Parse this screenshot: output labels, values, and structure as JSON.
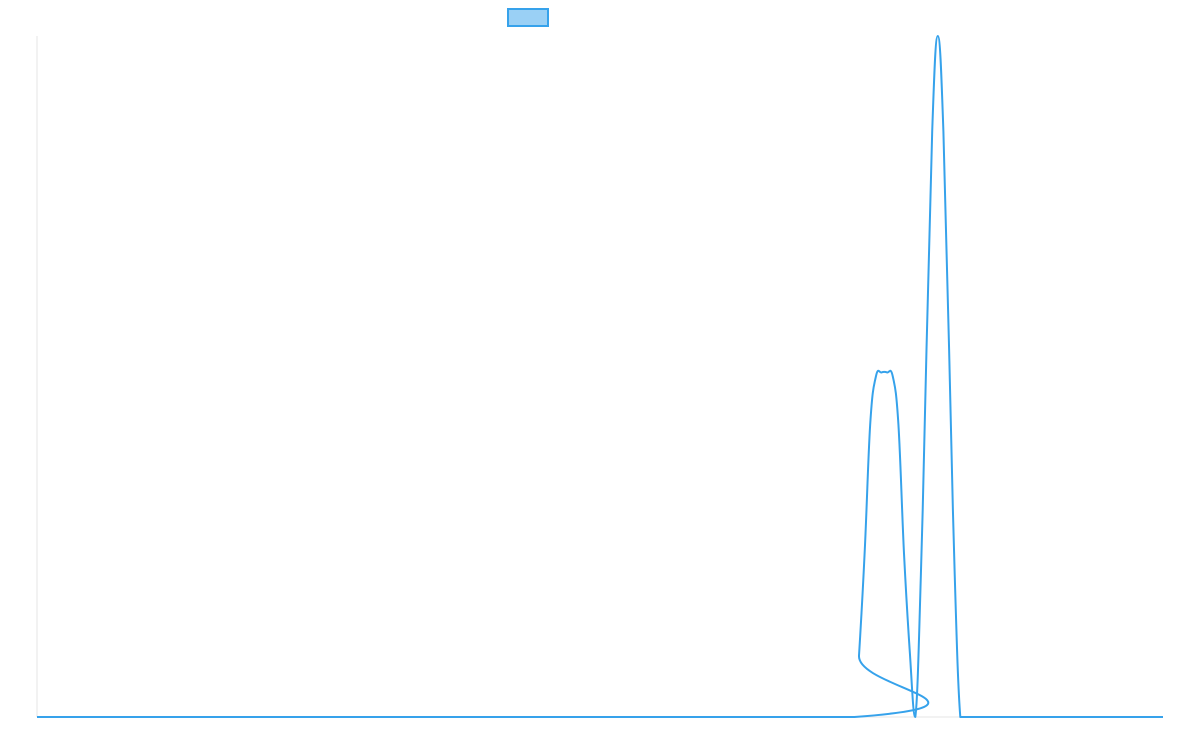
{
  "chart_data": {
    "type": "line",
    "title": "",
    "xlabel": "",
    "ylabel": "",
    "legend": {
      "placement": "top-center",
      "entries": [
        {
          "label": ""
        }
      ]
    },
    "grid": false,
    "xlim": [
      0,
      100
    ],
    "ylim": [
      0,
      100
    ],
    "series": [
      {
        "color": "#36a2eb",
        "fill": "#9ad0f5",
        "x": [
          0,
          72.6,
          73.0,
          73.5,
          74.0,
          74.5,
          75.0,
          75.5,
          76.0,
          76.5,
          77.0,
          77.5,
          78.0,
          78.5,
          79.0,
          79.5,
          80.0,
          80.5,
          81.0,
          81.5,
          82.0,
          82.5,
          83.0,
          83.5,
          84.0,
          84.5,
          85.0,
          85.5,
          100
        ],
        "y": [
          0,
          0,
          9,
          24,
          43,
          50,
          50.6,
          50.6,
          50,
          43,
          24,
          10,
          0,
          21,
          54,
          86,
          100,
          86,
          54,
          21,
          0,
          0,
          0,
          0,
          0,
          0,
          0,
          0,
          0
        ]
      }
    ]
  }
}
